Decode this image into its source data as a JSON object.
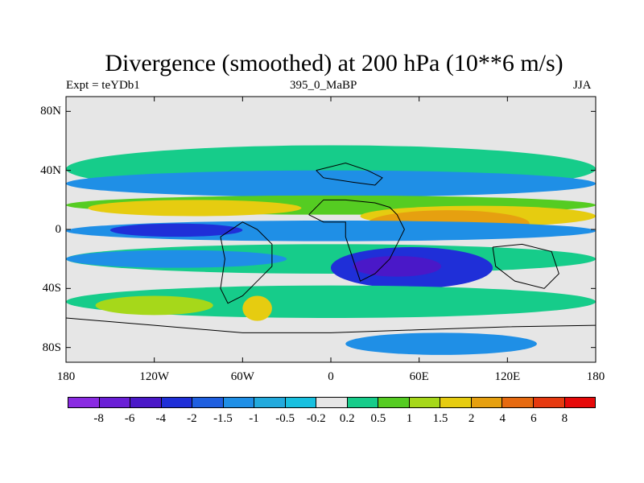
{
  "chart_data": {
    "type": "heatmap",
    "title": "Divergence (smoothed) at 200 hPa (10**6 m/s)",
    "subtitle_left": "Expt = teYDb1",
    "subtitle_center": "395_0_MaBP",
    "subtitle_right": "JJA",
    "xlim": [
      -180,
      180
    ],
    "ylim": [
      -90,
      90
    ],
    "x_ticks": [
      {
        "value": -180,
        "label": "180"
      },
      {
        "value": -120,
        "label": "120W"
      },
      {
        "value": -60,
        "label": "60W"
      },
      {
        "value": 0,
        "label": "0"
      },
      {
        "value": 60,
        "label": "60E"
      },
      {
        "value": 120,
        "label": "120E"
      },
      {
        "value": 180,
        "label": "180"
      }
    ],
    "y_ticks": [
      {
        "value": 80,
        "label": "80N"
      },
      {
        "value": 40,
        "label": "40N"
      },
      {
        "value": 0,
        "label": "0"
      },
      {
        "value": -40,
        "label": "40S"
      },
      {
        "value": -80,
        "label": "80S"
      }
    ],
    "colorbar": {
      "labels": [
        "-8",
        "-6",
        "-4",
        "-2",
        "-1.5",
        "-1",
        "-0.5",
        "-0.2",
        "0.2",
        "0.5",
        "1",
        "1.5",
        "2",
        "4",
        "6",
        "8"
      ],
      "colors": [
        "#8a2be2",
        "#6a1fd6",
        "#4a18c8",
        "#1f2fd8",
        "#1f5fe0",
        "#1f8fe6",
        "#22aadd",
        "#18c0e0",
        "#e6e6e6",
        "#16cc8a",
        "#55cc22",
        "#a6d81a",
        "#e6cc10",
        "#e6a010",
        "#e66a10",
        "#e63a10",
        "#e60a0a"
      ],
      "background_color": "#e6e6e6"
    },
    "field_regions": [
      {
        "level": "0.5",
        "color": "#16cc8a",
        "lon": -180,
        "lat": 57,
        "lon2": 180,
        "lat2": 25
      },
      {
        "level": "-1",
        "color": "#1f8fe6",
        "lon": -180,
        "lat": 40,
        "lon2": 180,
        "lat2": 22
      },
      {
        "level": "1",
        "color": "#55cc22",
        "lon": -180,
        "lat": 23,
        "lon2": 180,
        "lat2": 10
      },
      {
        "level": "2",
        "color": "#e6cc10",
        "lon": -165,
        "lat": 20,
        "lon2": -20,
        "lat2": 9
      },
      {
        "level": "2",
        "color": "#e6cc10",
        "lon": 20,
        "lat": 16,
        "lon2": 180,
        "lat2": 2
      },
      {
        "level": "4",
        "color": "#e6a010",
        "lon": 25,
        "lat": 13,
        "lon2": 135,
        "lat2": -5
      },
      {
        "level": "-1",
        "color": "#1f8fe6",
        "lon": -180,
        "lat": 6,
        "lon2": 180,
        "lat2": -8
      },
      {
        "level": "-2",
        "color": "#1f2fd8",
        "lon": -150,
        "lat": 4,
        "lon2": -60,
        "lat2": -5
      },
      {
        "level": "0.5",
        "color": "#16cc8a",
        "lon": -180,
        "lat": -10,
        "lon2": 180,
        "lat2": -30
      },
      {
        "level": "-1",
        "color": "#1f8fe6",
        "lon": -180,
        "lat": -14,
        "lon2": -30,
        "lat2": -26
      },
      {
        "level": "-2",
        "color": "#1f2fd8",
        "lon": 0,
        "lat": -12,
        "lon2": 110,
        "lat2": -40
      },
      {
        "level": "-4",
        "color": "#4a18c8",
        "lon": 15,
        "lat": -18,
        "lon2": 75,
        "lat2": -32
      },
      {
        "level": "0.5",
        "color": "#16cc8a",
        "lon": -180,
        "lat": -38,
        "lon2": 180,
        "lat2": -60
      },
      {
        "level": "1.5",
        "color": "#a6d81a",
        "lon": -160,
        "lat": -45,
        "lon2": -80,
        "lat2": -58
      },
      {
        "level": "2",
        "color": "#e6cc10",
        "lon": -60,
        "lat": -45,
        "lon2": -40,
        "lat2": -62
      },
      {
        "level": "-1",
        "color": "#1f8fe6",
        "lon": 10,
        "lat": -70,
        "lon2": 140,
        "lat2": -85
      }
    ],
    "coastlines": [
      [
        [
          -15,
          10
        ],
        [
          -5,
          5
        ],
        [
          10,
          5
        ],
        [
          10,
          -5
        ],
        [
          15,
          -20
        ],
        [
          20,
          -35
        ],
        [
          30,
          -30
        ],
        [
          40,
          -20
        ],
        [
          45,
          -10
        ],
        [
          50,
          0
        ],
        [
          45,
          10
        ],
        [
          40,
          15
        ],
        [
          30,
          18
        ],
        [
          10,
          20
        ],
        [
          -5,
          20
        ],
        [
          -15,
          10
        ]
      ],
      [
        [
          -75,
          -5
        ],
        [
          -60,
          5
        ],
        [
          -50,
          0
        ],
        [
          -40,
          -10
        ],
        [
          -40,
          -25
        ],
        [
          -50,
          -35
        ],
        [
          -60,
          -45
        ],
        [
          -70,
          -50
        ],
        [
          -75,
          -40
        ],
        [
          -72,
          -20
        ],
        [
          -75,
          -5
        ]
      ],
      [
        [
          110,
          -12
        ],
        [
          130,
          -10
        ],
        [
          150,
          -15
        ],
        [
          155,
          -30
        ],
        [
          145,
          -40
        ],
        [
          125,
          -35
        ],
        [
          112,
          -25
        ],
        [
          110,
          -12
        ]
      ],
      [
        [
          -10,
          40
        ],
        [
          10,
          45
        ],
        [
          25,
          40
        ],
        [
          35,
          35
        ],
        [
          30,
          30
        ],
        [
          15,
          32
        ],
        [
          -5,
          35
        ],
        [
          -10,
          40
        ]
      ],
      [
        [
          -180,
          -60
        ],
        [
          -120,
          -65
        ],
        [
          -60,
          -70
        ],
        [
          0,
          -70
        ],
        [
          60,
          -68
        ],
        [
          120,
          -66
        ],
        [
          180,
          -65
        ]
      ]
    ]
  }
}
